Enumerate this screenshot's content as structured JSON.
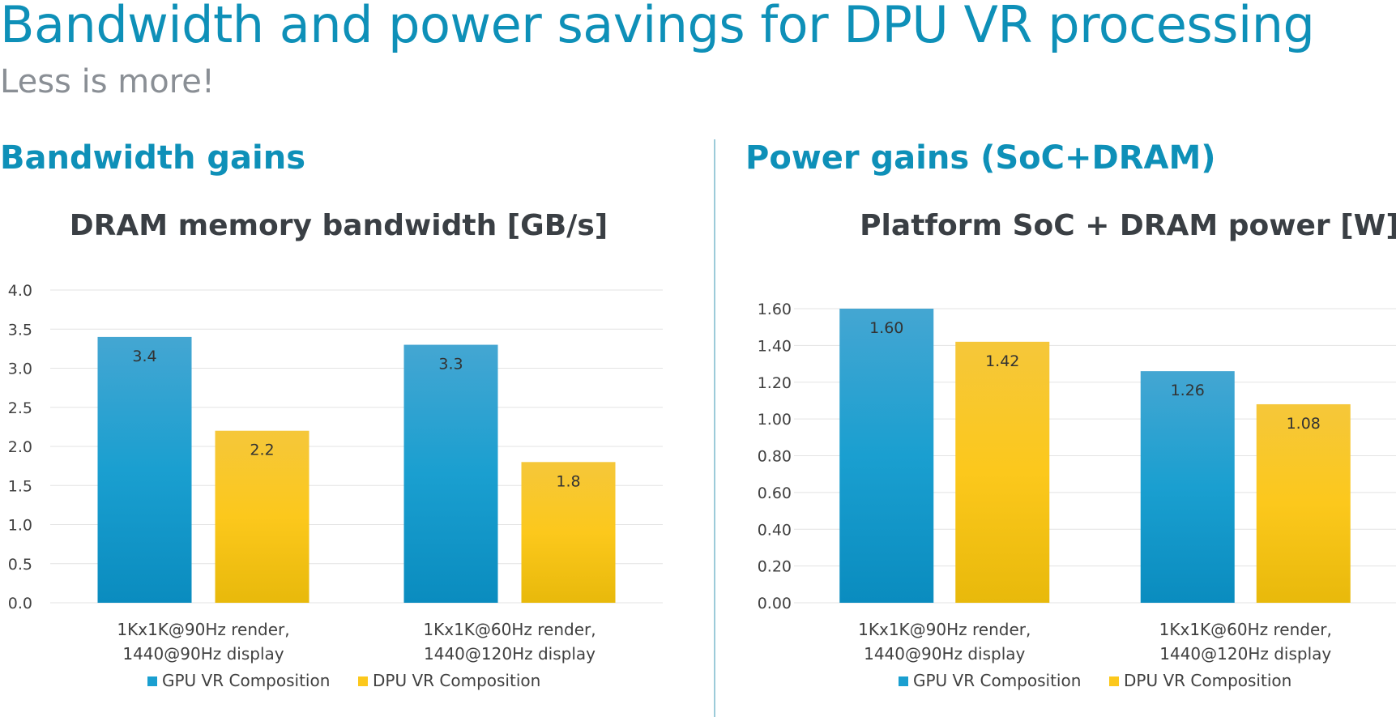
{
  "slide": {
    "title": "Bandwidth and power savings for DPU VR processing",
    "subtitle": "Less is more!",
    "left_heading": "Bandwidth gains",
    "right_heading": "Power gains (SoC+DRAM)"
  },
  "colors": {
    "gpu": "#1a9fd0",
    "dpu": "#fcc81c",
    "accent": "#0e90b8"
  },
  "chart_data": [
    {
      "type": "bar",
      "title": "DRAM memory bandwidth [GB/s]",
      "categories": [
        "1Kx1K@90Hz render,\n1440@90Hz display",
        "1Kx1K@60Hz render,\n1440@120Hz display"
      ],
      "series": [
        {
          "name": "GPU VR Composition",
          "values": [
            3.4,
            3.3
          ],
          "labels": [
            "3.4",
            "3.3"
          ]
        },
        {
          "name": "DPU VR Composition",
          "values": [
            2.2,
            1.8
          ],
          "labels": [
            "2.2",
            "1.8"
          ]
        }
      ],
      "ylim": [
        0,
        4.0
      ],
      "yticks": [
        "0.0",
        "0.5",
        "1.0",
        "1.5",
        "2.0",
        "2.5",
        "3.0",
        "3.5",
        "4.0"
      ],
      "grid": true,
      "legend": "bottom"
    },
    {
      "type": "bar",
      "title": "Platform SoC + DRAM power [W]",
      "categories": [
        "1Kx1K@90Hz render,\n1440@90Hz display",
        "1Kx1K@60Hz render,\n1440@120Hz display"
      ],
      "series": [
        {
          "name": "GPU VR Composition",
          "values": [
            1.6,
            1.26
          ],
          "labels": [
            "1.60",
            "1.26"
          ]
        },
        {
          "name": "DPU VR Composition",
          "values": [
            1.42,
            1.08
          ],
          "labels": [
            "1.42",
            "1.08"
          ]
        }
      ],
      "ylim": [
        0,
        1.6
      ],
      "yticks": [
        "0.00",
        "0.20",
        "0.40",
        "0.60",
        "0.80",
        "1.00",
        "1.20",
        "1.40",
        "1.60"
      ],
      "grid": true,
      "legend": "bottom"
    }
  ]
}
